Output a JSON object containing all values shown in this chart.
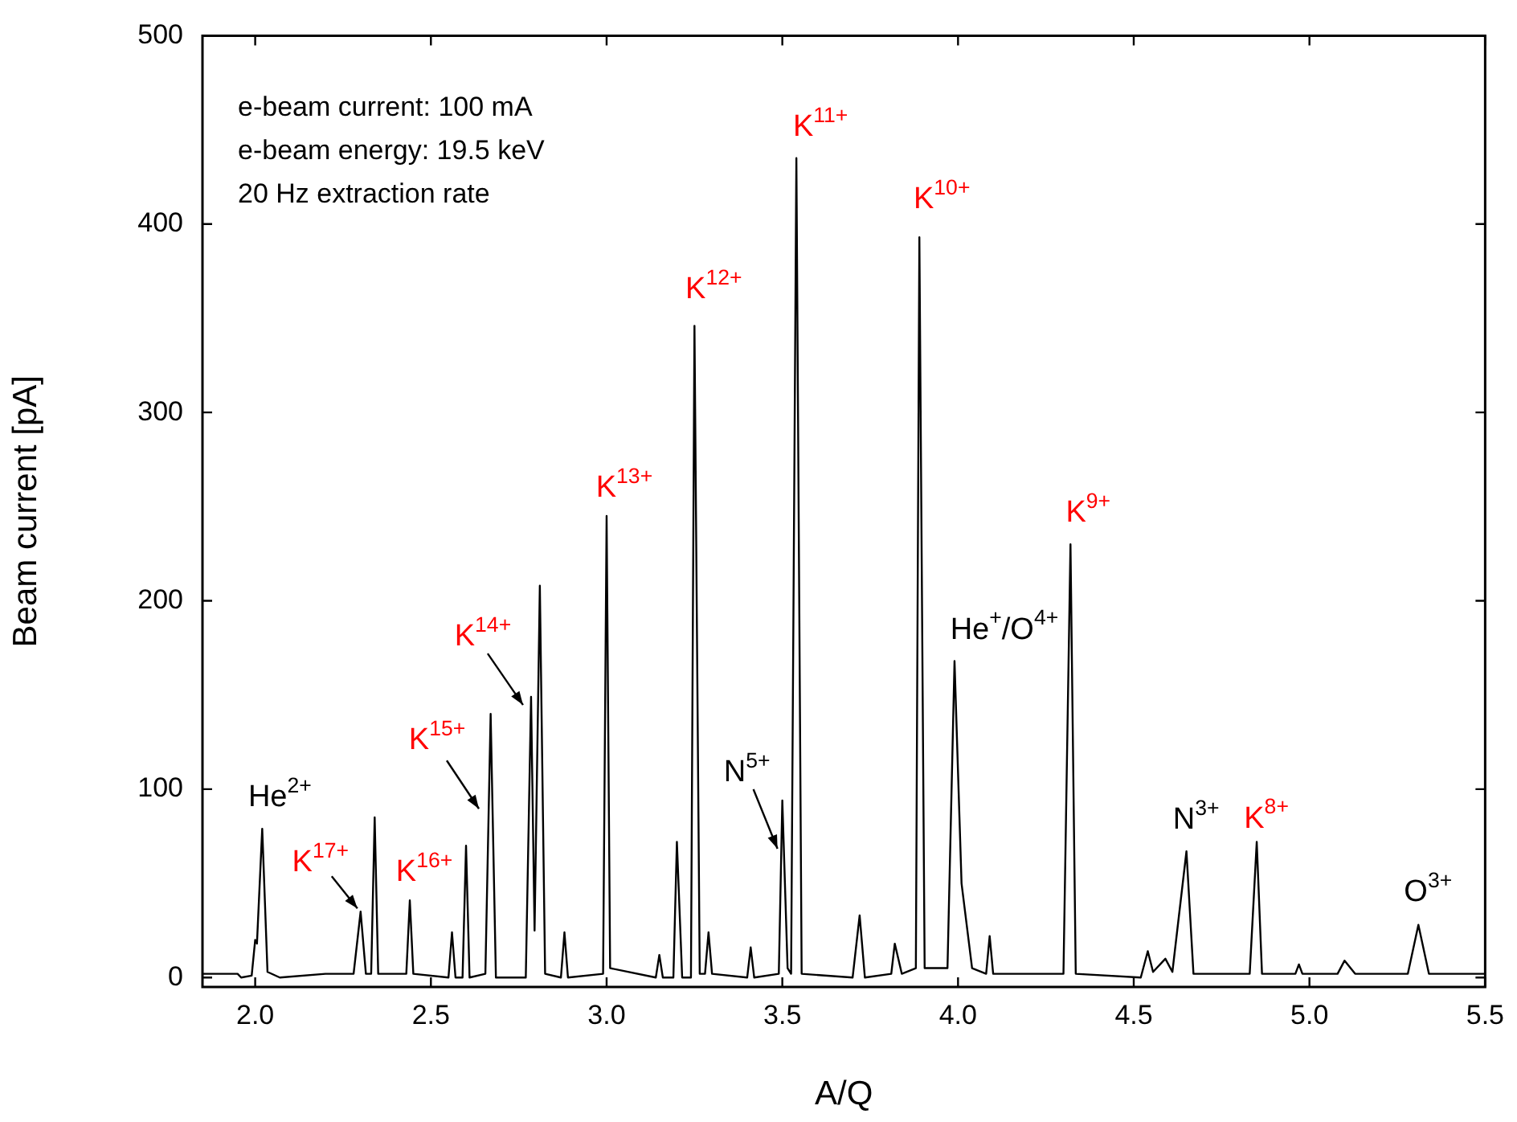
{
  "chart_data": {
    "type": "line",
    "xlabel": "A/Q",
    "ylabel": "Beam current [pA]",
    "x": [
      1.85,
      1.95,
      1.96,
      1.99,
      2.0,
      2.005,
      2.02,
      2.035,
      2.07,
      2.2,
      2.28,
      2.3,
      2.315,
      2.33,
      2.34,
      2.35,
      2.43,
      2.44,
      2.45,
      2.55,
      2.56,
      2.57,
      2.59,
      2.6,
      2.61,
      2.655,
      2.67,
      2.685,
      2.77,
      2.785,
      2.795,
      2.81,
      2.825,
      2.87,
      2.88,
      2.89,
      2.99,
      3.0,
      3.01,
      3.14,
      3.15,
      3.16,
      3.19,
      3.2,
      3.215,
      3.24,
      3.25,
      3.265,
      3.28,
      3.29,
      3.3,
      3.4,
      3.41,
      3.42,
      3.49,
      3.5,
      3.515,
      3.525,
      3.54,
      3.555,
      3.7,
      3.72,
      3.735,
      3.81,
      3.82,
      3.84,
      3.88,
      3.89,
      3.905,
      3.97,
      3.99,
      4.01,
      4.04,
      4.08,
      4.09,
      4.1,
      4.3,
      4.32,
      4.335,
      4.52,
      4.54,
      4.555,
      4.59,
      4.61,
      4.65,
      4.67,
      4.83,
      4.85,
      4.865,
      4.96,
      4.97,
      4.98,
      5.08,
      5.1,
      5.13,
      5.28,
      5.31,
      5.34,
      5.5
    ],
    "series": [
      {
        "color": "#000000",
        "values": [
          2,
          2,
          0,
          1,
          20,
          18,
          79,
          3,
          0,
          2,
          2,
          35,
          2,
          2,
          85,
          2,
          2,
          41,
          2,
          0,
          24,
          0,
          0,
          70,
          0,
          2,
          140,
          0,
          0,
          149,
          25,
          208,
          2,
          0,
          24,
          0,
          2,
          245,
          5,
          0,
          12,
          0,
          0,
          72,
          0,
          0,
          346,
          2,
          2,
          24,
          2,
          0,
          16,
          0,
          2,
          94,
          5,
          2,
          435,
          2,
          0,
          33,
          0,
          2,
          18,
          2,
          5,
          393,
          5,
          5,
          168,
          50,
          5,
          2,
          22,
          2,
          2,
          230,
          2,
          0,
          14,
          3,
          10,
          3,
          67,
          2,
          2,
          72,
          2,
          2,
          7,
          2,
          2,
          9,
          2,
          2,
          28,
          2,
          2
        ]
      }
    ],
    "xlim": [
      1.85,
      5.5
    ],
    "xticks": [
      {
        "value": 2.0,
        "label": "2.0"
      },
      {
        "value": 2.5,
        "label": "2.5"
      },
      {
        "value": 3.0,
        "label": "3.0"
      },
      {
        "value": 3.5,
        "label": "3.5"
      },
      {
        "value": 4.0,
        "label": "4.0"
      },
      {
        "value": 4.5,
        "label": "4.5"
      },
      {
        "value": 5.0,
        "label": "5.0"
      },
      {
        "value": 5.5,
        "label": "5.5"
      }
    ],
    "ylim": [
      -5,
      500
    ],
    "yticks": [
      0,
      100,
      200,
      300,
      400,
      500
    ],
    "grid": false,
    "legend": false,
    "marker": "none",
    "line_style": "solid",
    "annotations": [
      "e-beam current: 100 mA",
      "e-beam energy: 19.5 keV",
      "20 Hz extraction rate",
      {
        "text": "He$^{2+}$",
        "x": 2.02,
        "y": 79
      },
      {
        "text": "K$^{17+}$",
        "x": 2.3,
        "y": 35
      },
      {
        "text": "K$^{16+}$",
        "x": 2.44,
        "y": 41
      },
      {
        "text": "K$^{15+}$",
        "x": 2.6,
        "y": 70
      },
      {
        "text": "K$^{14+}$",
        "x": 2.785,
        "y": 149
      },
      {
        "text": "K$^{13+}$",
        "x": 3.0,
        "y": 245
      },
      {
        "text": "K$^{12+}$",
        "x": 3.25,
        "y": 346
      },
      {
        "text": "N$^{5+}$",
        "x": 3.5,
        "y": 94
      },
      {
        "text": "K$^{11+}$",
        "x": 3.54,
        "y": 435
      },
      {
        "text": "K$^{10+}$",
        "x": 3.89,
        "y": 393
      },
      {
        "text": "He$^{+}$/O$^{4+}$",
        "x": 3.99,
        "y": 168
      },
      {
        "text": "K$^{9+}$",
        "x": 4.32,
        "y": 230
      },
      {
        "text": "N$^{3+}$",
        "x": 4.65,
        "y": 67
      },
      {
        "text": "K$^{8+}$",
        "x": 4.85,
        "y": 72
      },
      {
        "text": "O$^{3+}$",
        "x": 5.31,
        "y": 28
      }
    ]
  }
}
